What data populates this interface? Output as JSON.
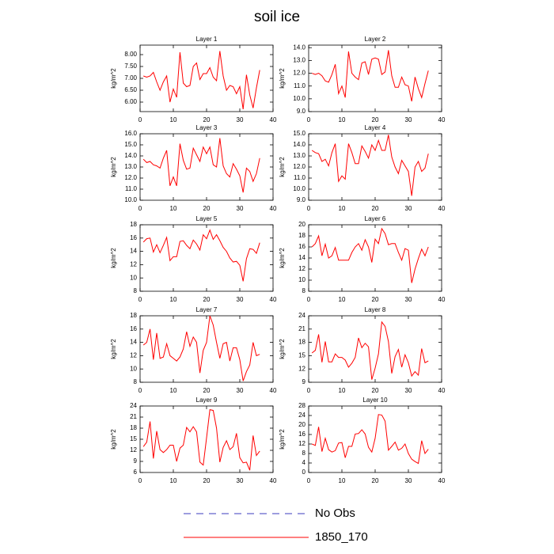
{
  "title": "soil ice",
  "legend": [
    {
      "name": "No Obs",
      "color": "#3b3bbf",
      "dashed": true
    },
    {
      "name": "1850_170",
      "color": "#ff0000",
      "dashed": false
    }
  ],
  "chart_data": [
    {
      "type": "line",
      "title": "Layer 1",
      "ylabel": "kg/m^2",
      "x": [
        1,
        2,
        3,
        4,
        5,
        6,
        7,
        8,
        9,
        10,
        11,
        12,
        13,
        14,
        15,
        16,
        17,
        18,
        19,
        20,
        21,
        22,
        23,
        24,
        25,
        26,
        27,
        28,
        29,
        30,
        31,
        32,
        33,
        34,
        35,
        36
      ],
      "series": [
        {
          "name": "1850_170",
          "color": "#ff0000",
          "values": [
            7.1,
            7.05,
            7.1,
            7.25,
            6.85,
            6.5,
            6.85,
            7.1,
            6.0,
            6.55,
            6.2,
            8.1,
            6.8,
            6.65,
            6.7,
            7.5,
            7.65,
            6.95,
            7.2,
            7.2,
            7.45,
            7.05,
            6.9,
            8.15,
            7.1,
            6.5,
            6.7,
            6.65,
            6.35,
            6.65,
            5.7,
            7.15,
            6.3,
            5.75,
            6.6,
            7.35
          ]
        }
      ],
      "xlim": [
        0,
        40
      ],
      "xticks": [
        0,
        10,
        20,
        30,
        40
      ],
      "ylim": [
        5.6,
        8.4
      ],
      "yticks": [
        {
          "value": 6,
          "label": "6.00"
        },
        {
          "value": 6.5,
          "label": "6.50"
        },
        {
          "value": 7,
          "label": "7.00"
        },
        {
          "value": 7.5,
          "label": "7.50"
        },
        {
          "value": 8,
          "label": "8.00"
        }
      ]
    },
    {
      "type": "line",
      "title": "Layer 2",
      "ylabel": "kg/m^2",
      "x": [
        1,
        2,
        3,
        4,
        5,
        6,
        7,
        8,
        9,
        10,
        11,
        12,
        13,
        14,
        15,
        16,
        17,
        18,
        19,
        20,
        21,
        22,
        23,
        24,
        25,
        26,
        27,
        28,
        29,
        30,
        31,
        32,
        33,
        34,
        35,
        36
      ],
      "series": [
        {
          "name": "1850_170",
          "color": "#ff0000",
          "values": [
            12.0,
            11.9,
            12.0,
            11.8,
            11.4,
            11.3,
            11.9,
            12.7,
            10.4,
            11.0,
            10.1,
            13.7,
            12.0,
            11.7,
            11.5,
            12.8,
            12.9,
            11.9,
            13.1,
            13.2,
            13.1,
            11.9,
            12.1,
            13.8,
            11.8,
            10.9,
            10.9,
            11.7,
            11.1,
            11.0,
            9.8,
            11.7,
            10.8,
            10.1,
            11.2,
            12.2
          ]
        }
      ],
      "xlim": [
        0,
        40
      ],
      "xticks": [
        0,
        10,
        20,
        30,
        40
      ],
      "ylim": [
        9,
        14.2
      ],
      "yticks": [
        {
          "value": 9,
          "label": "9.0"
        },
        {
          "value": 10,
          "label": "10.0"
        },
        {
          "value": 11,
          "label": "11.0"
        },
        {
          "value": 12,
          "label": "12.0"
        },
        {
          "value": 13,
          "label": "13.0"
        },
        {
          "value": 14,
          "label": "14.0"
        }
      ]
    },
    {
      "type": "line",
      "title": "Layer 3",
      "ylabel": "kg/m^2",
      "x": [
        1,
        2,
        3,
        4,
        5,
        6,
        7,
        8,
        9,
        10,
        11,
        12,
        13,
        14,
        15,
        16,
        17,
        18,
        19,
        20,
        21,
        22,
        23,
        24,
        25,
        26,
        27,
        28,
        29,
        30,
        31,
        32,
        33,
        34,
        35,
        36
      ],
      "series": [
        {
          "name": "1850_170",
          "color": "#ff0000",
          "values": [
            13.7,
            13.4,
            13.5,
            13.2,
            13.1,
            12.9,
            13.8,
            14.5,
            11.3,
            12.1,
            11.3,
            15.1,
            13.6,
            12.8,
            12.9,
            14.7,
            14.1,
            13.5,
            14.8,
            14.2,
            14.8,
            13.2,
            13.0,
            15.6,
            13.1,
            12.4,
            12.1,
            13.3,
            12.8,
            12.2,
            10.7,
            12.9,
            12.6,
            11.7,
            12.4,
            13.8
          ]
        }
      ],
      "xlim": [
        0,
        40
      ],
      "xticks": [
        0,
        10,
        20,
        30,
        40
      ],
      "ylim": [
        10,
        16
      ],
      "yticks": [
        {
          "value": 10,
          "label": "10.0"
        },
        {
          "value": 11,
          "label": "11.0"
        },
        {
          "value": 12,
          "label": "12.0"
        },
        {
          "value": 13,
          "label": "13.0"
        },
        {
          "value": 14,
          "label": "14.0"
        },
        {
          "value": 15,
          "label": "15.0"
        },
        {
          "value": 16,
          "label": "16.0"
        }
      ]
    },
    {
      "type": "line",
      "title": "Layer 4",
      "ylabel": "kg/m^2",
      "x": [
        1,
        2,
        3,
        4,
        5,
        6,
        7,
        8,
        9,
        10,
        11,
        12,
        13,
        14,
        15,
        16,
        17,
        18,
        19,
        20,
        21,
        22,
        23,
        24,
        25,
        26,
        27,
        28,
        29,
        30,
        31,
        32,
        33,
        34,
        35,
        36
      ],
      "series": [
        {
          "name": "1850_170",
          "color": "#ff0000",
          "values": [
            13.5,
            13.3,
            13.2,
            12.5,
            12.7,
            12.1,
            13.3,
            14.1,
            10.7,
            11.2,
            10.9,
            14.1,
            13.3,
            12.3,
            12.3,
            13.9,
            13.4,
            12.8,
            14.0,
            13.5,
            14.4,
            13.5,
            13.5,
            14.9,
            12.9,
            12.0,
            11.4,
            12.6,
            12.1,
            11.6,
            9.4,
            12.0,
            12.5,
            11.6,
            11.9,
            13.2
          ]
        }
      ],
      "xlim": [
        0,
        40
      ],
      "xticks": [
        0,
        10,
        20,
        30,
        40
      ],
      "ylim": [
        9,
        15
      ],
      "yticks": [
        {
          "value": 9,
          "label": "9.0"
        },
        {
          "value": 10,
          "label": "10.0"
        },
        {
          "value": 11,
          "label": "11.0"
        },
        {
          "value": 12,
          "label": "12.0"
        },
        {
          "value": 13,
          "label": "13.0"
        },
        {
          "value": 14,
          "label": "14.0"
        },
        {
          "value": 15,
          "label": "15.0"
        }
      ]
    },
    {
      "type": "line",
      "title": "Layer 5",
      "ylabel": "kg/m^2",
      "x": [
        1,
        2,
        3,
        4,
        5,
        6,
        7,
        8,
        9,
        10,
        11,
        12,
        13,
        14,
        15,
        16,
        17,
        18,
        19,
        20,
        21,
        22,
        23,
        24,
        25,
        26,
        27,
        28,
        29,
        30,
        31,
        32,
        33,
        34,
        35,
        36
      ],
      "series": [
        {
          "name": "1850_170",
          "color": "#ff0000",
          "values": [
            15.4,
            15.9,
            16.0,
            13.9,
            15.0,
            13.8,
            14.9,
            16.1,
            12.6,
            13.2,
            13.2,
            15.5,
            15.6,
            14.9,
            14.4,
            15.7,
            15.1,
            14.2,
            16.5,
            15.9,
            17.2,
            15.8,
            16.5,
            15.6,
            14.6,
            14.0,
            13.0,
            12.4,
            12.5,
            11.9,
            9.5,
            12.9,
            14.4,
            14.3,
            13.7,
            15.3
          ]
        }
      ],
      "xlim": [
        0,
        40
      ],
      "xticks": [
        0,
        10,
        20,
        30,
        40
      ],
      "ylim": [
        8,
        18
      ],
      "yticks": [
        8,
        10,
        12,
        14,
        16,
        18
      ]
    },
    {
      "type": "line",
      "title": "Layer 6",
      "ylabel": "kg/m^2",
      "x": [
        1,
        2,
        3,
        4,
        5,
        6,
        7,
        8,
        9,
        10,
        11,
        12,
        13,
        14,
        15,
        16,
        17,
        18,
        19,
        20,
        21,
        22,
        23,
        24,
        25,
        26,
        27,
        28,
        29,
        30,
        31,
        32,
        33,
        34,
        35,
        36
      ],
      "series": [
        {
          "name": "1850_170",
          "color": "#ff0000",
          "values": [
            16.0,
            16.6,
            18.0,
            14.4,
            16.5,
            14.0,
            14.4,
            15.9,
            13.6,
            13.6,
            13.6,
            13.6,
            15.0,
            16.0,
            16.6,
            15.4,
            17.3,
            16.0,
            13.2,
            17.4,
            16.6,
            19.3,
            18.4,
            16.4,
            16.6,
            16.6,
            15.0,
            13.6,
            15.7,
            15.4,
            9.5,
            12.0,
            13.9,
            15.6,
            14.4,
            16.0
          ]
        }
      ],
      "xlim": [
        0,
        40
      ],
      "xticks": [
        0,
        10,
        20,
        30,
        40
      ],
      "ylim": [
        8,
        20
      ],
      "yticks": [
        8,
        10,
        12,
        14,
        16,
        18,
        20
      ]
    },
    {
      "type": "line",
      "title": "Layer 7",
      "ylabel": "kg/m^2",
      "x": [
        1,
        2,
        3,
        4,
        5,
        6,
        7,
        8,
        9,
        10,
        11,
        12,
        13,
        14,
        15,
        16,
        17,
        18,
        19,
        20,
        21,
        22,
        23,
        24,
        25,
        26,
        27,
        28,
        29,
        30,
        31,
        32,
        33,
        34,
        35,
        36
      ],
      "series": [
        {
          "name": "1850_170",
          "color": "#ff0000",
          "values": [
            13.6,
            14.0,
            16.0,
            11.4,
            15.4,
            11.6,
            11.8,
            13.8,
            12.0,
            11.6,
            11.2,
            11.8,
            13.0,
            15.6,
            13.4,
            14.8,
            14.0,
            9.4,
            12.8,
            14.0,
            18.0,
            16.6,
            14.0,
            11.6,
            13.8,
            14.0,
            11.2,
            13.2,
            13.2,
            11.4,
            8.2,
            9.6,
            10.6,
            14.0,
            12.0,
            12.2
          ]
        }
      ],
      "xlim": [
        0,
        40
      ],
      "xticks": [
        0,
        10,
        20,
        30,
        40
      ],
      "ylim": [
        8,
        18
      ],
      "yticks": [
        8,
        10,
        12,
        14,
        16,
        18
      ]
    },
    {
      "type": "line",
      "title": "Layer 8",
      "ylabel": "kg/m^2",
      "x": [
        1,
        2,
        3,
        4,
        5,
        6,
        7,
        8,
        9,
        10,
        11,
        12,
        13,
        14,
        15,
        16,
        17,
        18,
        19,
        20,
        21,
        22,
        23,
        24,
        25,
        26,
        27,
        28,
        29,
        30,
        31,
        32,
        33,
        34,
        35,
        36
      ],
      "series": [
        {
          "name": "1850_170",
          "color": "#ff0000",
          "values": [
            15.6,
            16.2,
            19.8,
            13.5,
            18.2,
            13.6,
            13.6,
            15.4,
            14.6,
            14.6,
            14.0,
            12.4,
            13.3,
            14.6,
            19.0,
            16.8,
            17.8,
            17.0,
            9.6,
            12.2,
            15.4,
            22.6,
            21.6,
            18.2,
            11.0,
            14.8,
            16.4,
            12.4,
            15.2,
            13.4,
            10.4,
            11.4,
            10.6,
            16.6,
            13.4,
            13.8
          ]
        }
      ],
      "xlim": [
        0,
        40
      ],
      "xticks": [
        0,
        10,
        20,
        30,
        40
      ],
      "ylim": [
        9,
        24
      ],
      "yticks": [
        9,
        12,
        15,
        18,
        21,
        24
      ]
    },
    {
      "type": "line",
      "title": "Layer 9",
      "ylabel": "kg/m^2",
      "x": [
        1,
        2,
        3,
        4,
        5,
        6,
        7,
        8,
        9,
        10,
        11,
        12,
        13,
        14,
        15,
        16,
        17,
        18,
        19,
        20,
        21,
        22,
        23,
        24,
        25,
        26,
        27,
        28,
        29,
        30,
        31,
        32,
        33,
        34,
        35,
        36
      ],
      "series": [
        {
          "name": "1850_170",
          "color": "#ff0000",
          "values": [
            13.0,
            14.2,
            19.8,
            9.8,
            17.2,
            12.2,
            11.4,
            12.2,
            13.4,
            13.4,
            9.0,
            12.6,
            13.4,
            18.2,
            17.0,
            18.4,
            17.0,
            8.8,
            8.0,
            15.4,
            23.0,
            22.8,
            18.0,
            8.8,
            12.8,
            14.6,
            12.2,
            13.0,
            16.6,
            10.0,
            8.6,
            8.8,
            6.6,
            16.0,
            10.6,
            11.8
          ]
        }
      ],
      "xlim": [
        0,
        40
      ],
      "xticks": [
        0,
        10,
        20,
        30,
        40
      ],
      "ylim": [
        6,
        24
      ],
      "yticks": [
        6,
        9,
        12,
        15,
        18,
        21,
        24
      ]
    },
    {
      "type": "line",
      "title": "Layer 10",
      "ylabel": "kg/m^2",
      "x": [
        1,
        2,
        3,
        4,
        5,
        6,
        7,
        8,
        9,
        10,
        11,
        12,
        13,
        14,
        15,
        16,
        17,
        18,
        19,
        20,
        21,
        22,
        23,
        24,
        25,
        26,
        27,
        28,
        29,
        30,
        31,
        32,
        33,
        34,
        35,
        36
      ],
      "series": [
        {
          "name": "1850_170",
          "color": "#ff0000",
          "values": [
            12.0,
            11.4,
            19.2,
            8.8,
            14.4,
            9.6,
            8.6,
            9.2,
            12.4,
            12.6,
            6.2,
            11.0,
            11.0,
            16.2,
            16.4,
            18.0,
            16.2,
            10.6,
            8.6,
            14.4,
            24.4,
            24.2,
            21.6,
            9.4,
            11.0,
            12.8,
            9.4,
            10.2,
            12.0,
            8.0,
            5.6,
            4.6,
            3.8,
            13.4,
            8.0,
            9.8
          ]
        }
      ],
      "xlim": [
        0,
        40
      ],
      "xticks": [
        0,
        10,
        20,
        30,
        40
      ],
      "ylim": [
        0,
        28
      ],
      "yticks": [
        0,
        4,
        8,
        12,
        16,
        20,
        24,
        28
      ]
    }
  ]
}
